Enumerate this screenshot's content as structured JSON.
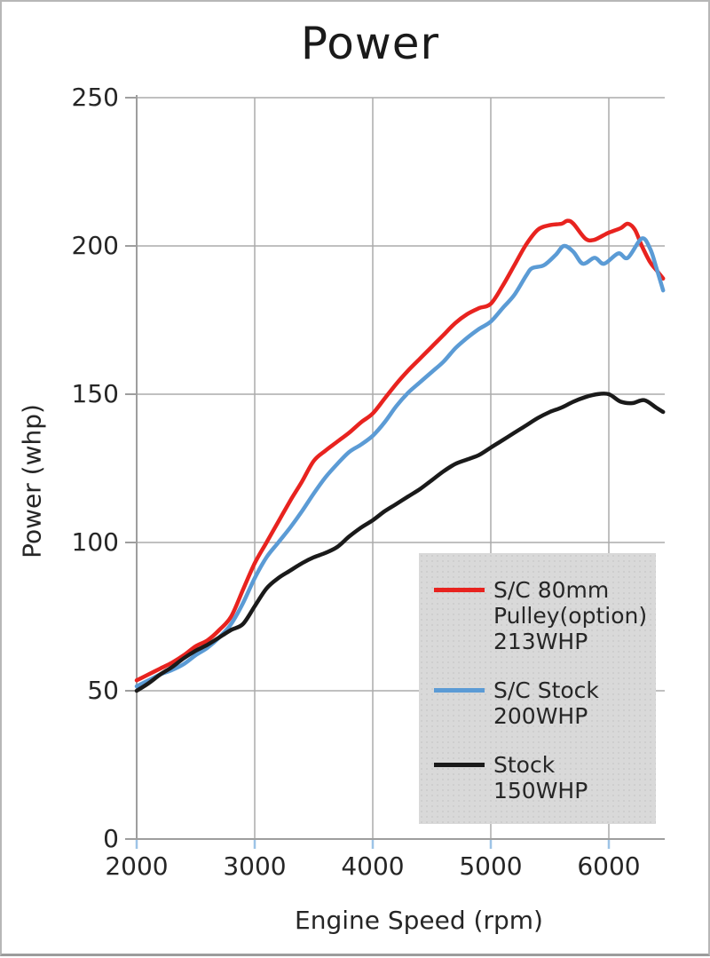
{
  "chart": {
    "title": "Power",
    "x_axis_title": "Engine Speed (rpm)",
    "y_axis_title": "Power (whp)"
  },
  "chart_data": {
    "type": "line",
    "title": "Power",
    "xlabel": "Engine Speed (rpm)",
    "ylabel": "Power (whp)",
    "xlim": [
      2000,
      6500
    ],
    "ylim": [
      0,
      250
    ],
    "x_ticks": [
      2000,
      3000,
      4000,
      5000,
      6000
    ],
    "y_ticks": [
      0,
      50,
      100,
      150,
      200,
      250
    ],
    "grid": true,
    "legend_position": "lower-right",
    "colors": {
      "grid": "#ababab",
      "axis": "#9e9e9e",
      "x_tick_mark": "#9dc3e6",
      "y_tick_mark": "#9e9e9e",
      "text": "#262626",
      "legend_background": "#d9d9d9"
    },
    "series": [
      {
        "id": "sc-80mm-pulley",
        "name": "S/C 80mm Pulley(option) 213WHP",
        "label_lines": [
          "S/C 80mm",
          "Pulley(option)",
          "213WHP"
        ],
        "color": "#e8231f",
        "points": [
          [
            2000,
            53.5
          ],
          [
            2100,
            55.5
          ],
          [
            2200,
            57.5
          ],
          [
            2300,
            59.5
          ],
          [
            2400,
            62
          ],
          [
            2500,
            65
          ],
          [
            2600,
            67
          ],
          [
            2700,
            70.5
          ],
          [
            2800,
            75
          ],
          [
            2900,
            84
          ],
          [
            3000,
            93
          ],
          [
            3100,
            100
          ],
          [
            3200,
            107
          ],
          [
            3300,
            114
          ],
          [
            3400,
            120.5
          ],
          [
            3500,
            127.5
          ],
          [
            3600,
            131
          ],
          [
            3700,
            134
          ],
          [
            3800,
            137
          ],
          [
            3900,
            140.5
          ],
          [
            4000,
            143.5
          ],
          [
            4100,
            148.5
          ],
          [
            4200,
            153.5
          ],
          [
            4300,
            158
          ],
          [
            4400,
            162
          ],
          [
            4500,
            166
          ],
          [
            4600,
            170
          ],
          [
            4700,
            174
          ],
          [
            4800,
            177
          ],
          [
            4900,
            179
          ],
          [
            5000,
            180.5
          ],
          [
            5100,
            186.5
          ],
          [
            5200,
            193.5
          ],
          [
            5300,
            200.5
          ],
          [
            5400,
            205.5
          ],
          [
            5500,
            207
          ],
          [
            5600,
            207.5
          ],
          [
            5650,
            208.5
          ],
          [
            5700,
            207.5
          ],
          [
            5800,
            202.5
          ],
          [
            5870,
            202
          ],
          [
            5950,
            203.5
          ],
          [
            6000,
            204.5
          ],
          [
            6100,
            206
          ],
          [
            6160,
            207.5
          ],
          [
            6220,
            205.5
          ],
          [
            6280,
            200
          ],
          [
            6350,
            194.5
          ],
          [
            6400,
            192
          ],
          [
            6460,
            189
          ]
        ]
      },
      {
        "id": "sc-stock",
        "name": "S/C Stock 200WHP",
        "label_lines": [
          "S/C Stock",
          "200WHP"
        ],
        "color": "#5b9bd5",
        "points": [
          [
            2000,
            51.5
          ],
          [
            2100,
            53.5
          ],
          [
            2200,
            55.5
          ],
          [
            2300,
            57
          ],
          [
            2400,
            59
          ],
          [
            2500,
            62
          ],
          [
            2600,
            64.5
          ],
          [
            2700,
            68
          ],
          [
            2800,
            72.5
          ],
          [
            2900,
            79.5
          ],
          [
            3000,
            88
          ],
          [
            3100,
            95
          ],
          [
            3200,
            100
          ],
          [
            3300,
            105
          ],
          [
            3400,
            110.5
          ],
          [
            3500,
            116.5
          ],
          [
            3600,
            122
          ],
          [
            3700,
            126.5
          ],
          [
            3800,
            130.5
          ],
          [
            3900,
            133
          ],
          [
            4000,
            136
          ],
          [
            4100,
            140.5
          ],
          [
            4200,
            146
          ],
          [
            4300,
            150.5
          ],
          [
            4400,
            154
          ],
          [
            4500,
            157.5
          ],
          [
            4600,
            161
          ],
          [
            4700,
            165.5
          ],
          [
            4800,
            169
          ],
          [
            4900,
            172
          ],
          [
            5000,
            174.5
          ],
          [
            5100,
            179
          ],
          [
            5200,
            183.5
          ],
          [
            5300,
            190
          ],
          [
            5350,
            192.5
          ],
          [
            5450,
            193.5
          ],
          [
            5550,
            197
          ],
          [
            5620,
            200
          ],
          [
            5700,
            198
          ],
          [
            5780,
            194
          ],
          [
            5880,
            196
          ],
          [
            5960,
            194
          ],
          [
            6080,
            197.5
          ],
          [
            6160,
            196
          ],
          [
            6280,
            202.5
          ],
          [
            6350,
            199
          ],
          [
            6400,
            193
          ],
          [
            6460,
            185
          ]
        ]
      },
      {
        "id": "stock",
        "name": "Stock 150WHP",
        "label_lines": [
          "Stock",
          "150WHP"
        ],
        "color": "#1a1a1a",
        "points": [
          [
            2000,
            50
          ],
          [
            2100,
            52.5
          ],
          [
            2200,
            55.5
          ],
          [
            2300,
            58
          ],
          [
            2400,
            61
          ],
          [
            2500,
            63.5
          ],
          [
            2600,
            65.5
          ],
          [
            2700,
            68
          ],
          [
            2800,
            70.5
          ],
          [
            2900,
            72.5
          ],
          [
            3000,
            78.5
          ],
          [
            3100,
            84.5
          ],
          [
            3200,
            88
          ],
          [
            3300,
            90.5
          ],
          [
            3400,
            93
          ],
          [
            3500,
            95
          ],
          [
            3600,
            96.5
          ],
          [
            3700,
            98.5
          ],
          [
            3800,
            102
          ],
          [
            3900,
            105
          ],
          [
            4000,
            107.5
          ],
          [
            4100,
            110.5
          ],
          [
            4200,
            113
          ],
          [
            4300,
            115.5
          ],
          [
            4400,
            118
          ],
          [
            4500,
            121
          ],
          [
            4600,
            124
          ],
          [
            4700,
            126.5
          ],
          [
            4800,
            128
          ],
          [
            4900,
            129.5
          ],
          [
            5000,
            132
          ],
          [
            5100,
            134.5
          ],
          [
            5200,
            137
          ],
          [
            5300,
            139.5
          ],
          [
            5400,
            142
          ],
          [
            5500,
            144
          ],
          [
            5600,
            145.5
          ],
          [
            5700,
            147.5
          ],
          [
            5800,
            149
          ],
          [
            5900,
            150
          ],
          [
            6000,
            150
          ],
          [
            6100,
            147.5
          ],
          [
            6200,
            147
          ],
          [
            6300,
            148
          ],
          [
            6400,
            145.5
          ],
          [
            6460,
            144
          ]
        ]
      }
    ]
  }
}
